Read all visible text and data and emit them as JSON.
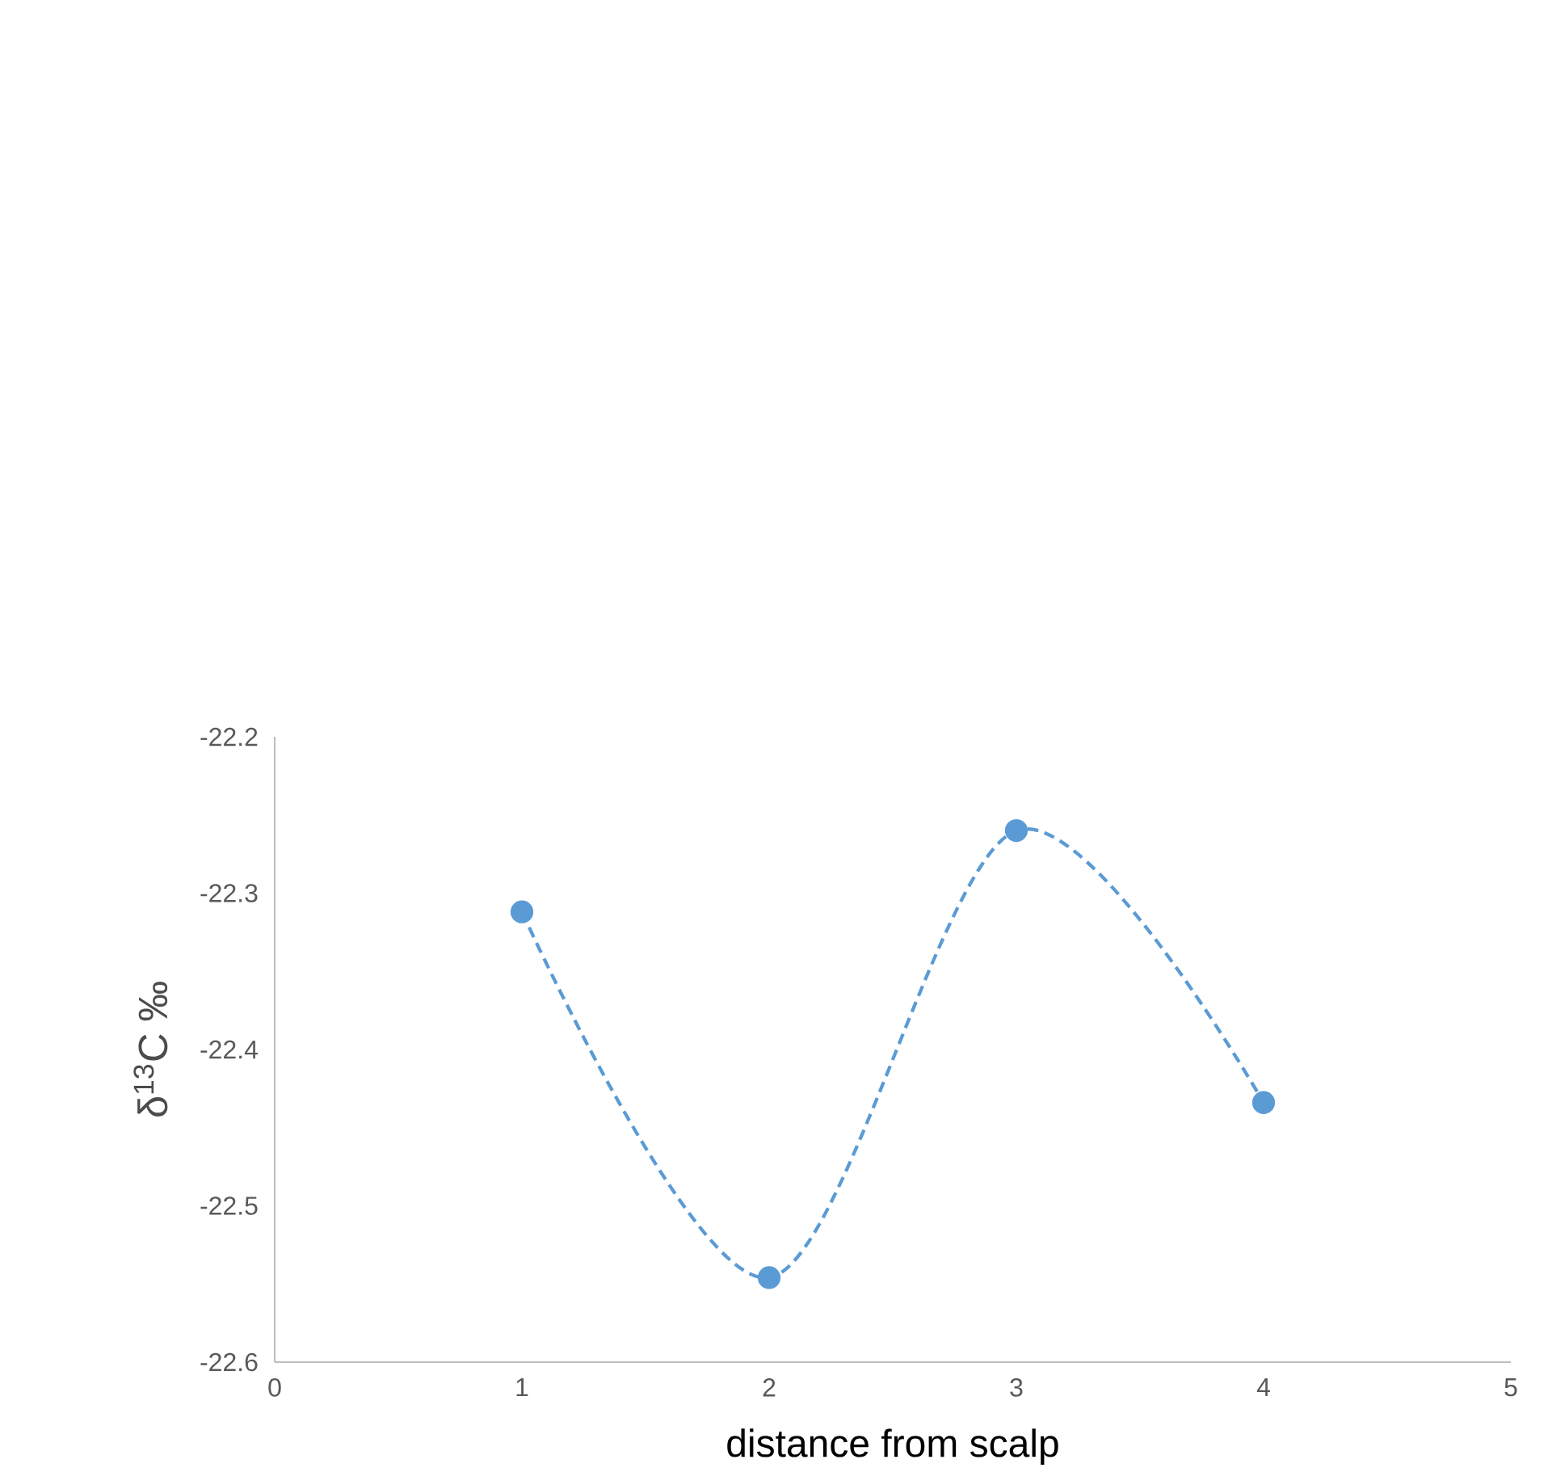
{
  "chart_data": {
    "type": "line",
    "xlabel": "distance from scalp",
    "ylabel": "δ$^{13}$C ‰",
    "x": [
      1,
      2,
      3,
      4
    ],
    "series": [
      {
        "color": "#5b9bd5",
        "values": [
          -22.312,
          -22.546,
          -22.26,
          -22.434
        ]
      }
    ],
    "xlim": [
      0,
      5
    ],
    "xticks": [
      0,
      1,
      2,
      3,
      4,
      5
    ],
    "ylim": [
      -22.6,
      -22.2
    ],
    "yticks": [
      -22.6,
      -22.5,
      -22.4,
      -22.3,
      -22.2
    ],
    "marker": "circle",
    "line_style": "dashed",
    "grid": false,
    "legend": false
  }
}
